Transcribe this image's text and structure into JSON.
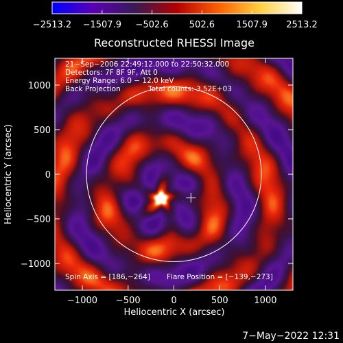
{
  "chart_data": {
    "type": "heatmap",
    "title": "Reconstructed RHESSI Image",
    "xlabel": "Heliocentric X (arcsec)",
    "ylabel": "Heliocentric Y (arcsec)",
    "xlim": [
      -1300,
      1300
    ],
    "ylim": [
      -1300,
      1300
    ],
    "x_ticks": [
      -1000,
      -500,
      0,
      500,
      1000
    ],
    "y_ticks": [
      -1000,
      -500,
      0,
      500,
      1000
    ],
    "x_tick_labels": [
      "−1000",
      "−500",
      "0",
      "500",
      "1000"
    ],
    "y_tick_labels": [
      "−1000",
      "−500",
      "0",
      "500",
      "1000"
    ],
    "colorbar": {
      "range": [
        -2513.2,
        2513.2
      ],
      "ticks": [
        -2513.2,
        -1507.9,
        -502.6,
        502.6,
        1507.9,
        2513.2
      ],
      "tick_labels": [
        "−2513.2",
        "−1507.9",
        "−502.6",
        "502.6",
        "1507.9",
        "2513.2"
      ],
      "colors": [
        "#0000ff",
        "#5a00b4",
        "#3a1a55",
        "#b40000",
        "#ff6000",
        "#ffd040",
        "#ffffff"
      ]
    },
    "source": {
      "x": -139,
      "y": -273,
      "peak": 2513.2
    },
    "solar_disk_radius": 955,
    "annotations": {
      "line1": "21−Sep−2006 22:49:12.000 to 22:50:32.000",
      "line2": "Detectors: 7F 8F 9F, Att 0",
      "line3": "Energy Range: 6.0 − 12.0 keV",
      "line4a": "Back Projection",
      "line4b": "Total counts: 3.52E+03",
      "spin_axis": "Spin Axis = [186,−264]",
      "flare_position": "Flare Position = [−139,−273]"
    }
  },
  "footer": {
    "date": "7−May−2022 12:31"
  }
}
